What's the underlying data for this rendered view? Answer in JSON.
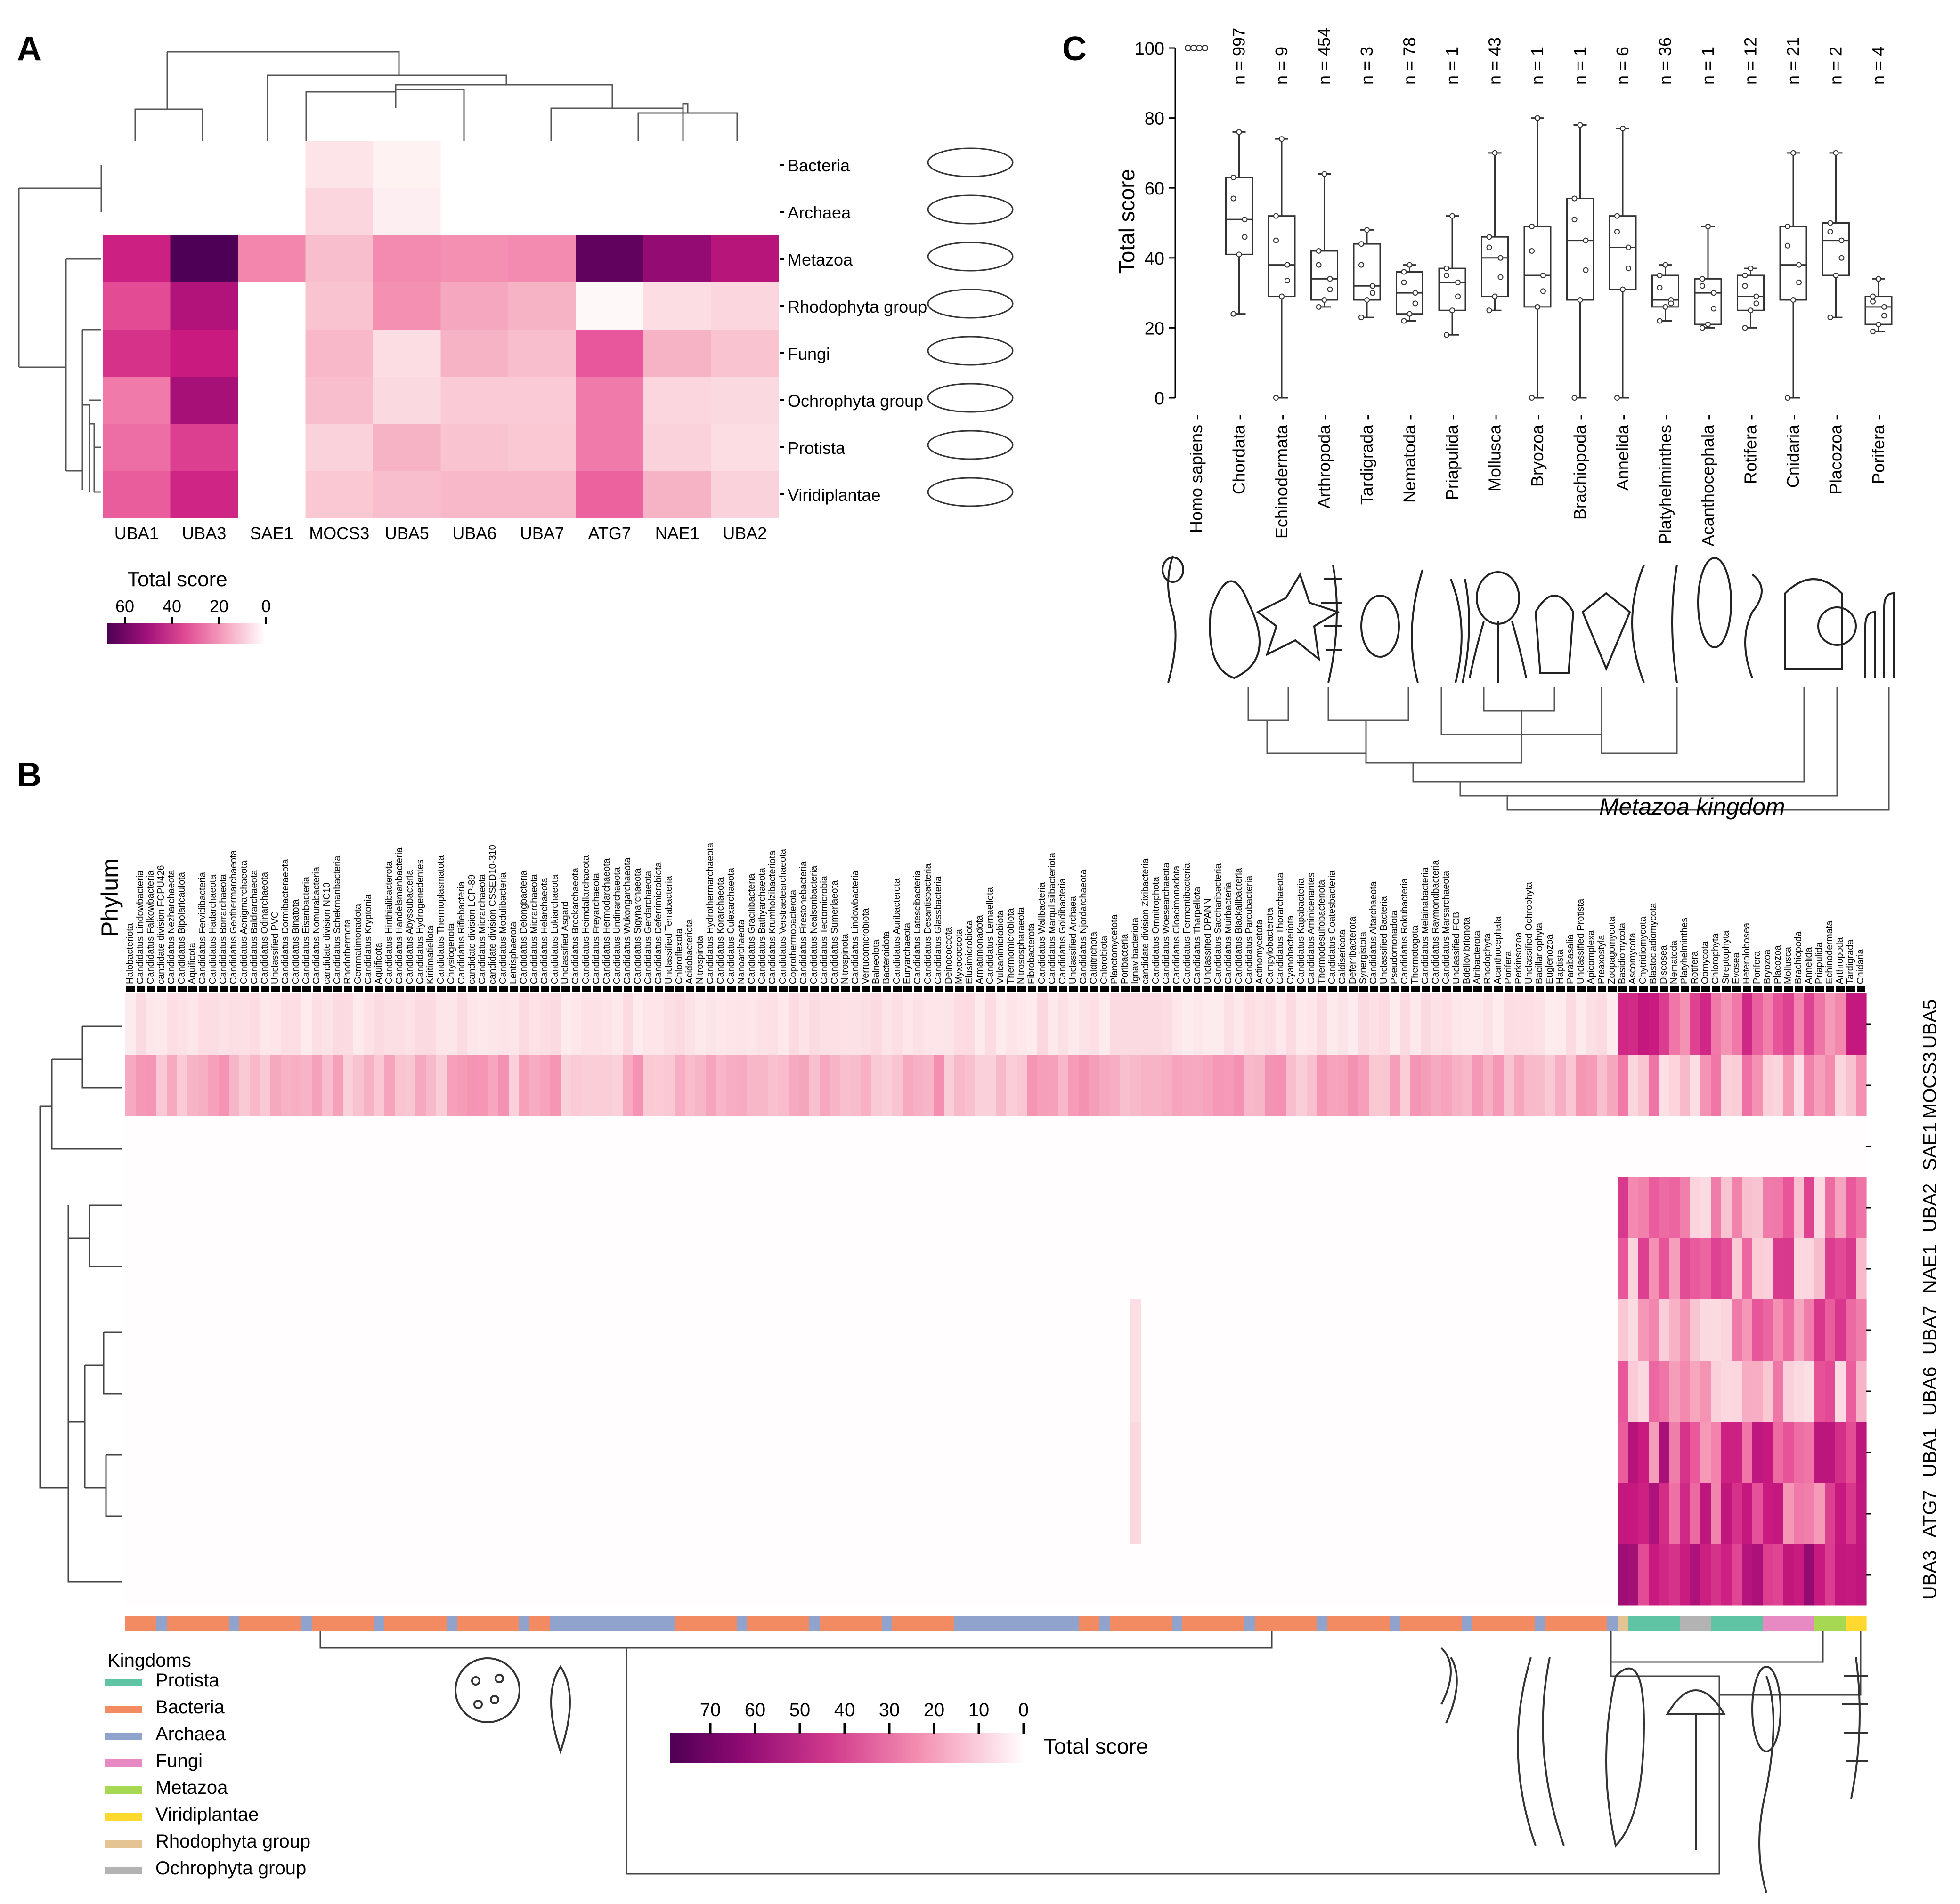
{
  "panels": {
    "a": "A",
    "b": "B",
    "c": "C"
  },
  "colors": {
    "scale": [
      "#ffffff",
      "#fde9ec",
      "#f9c6d2",
      "#f48fb1",
      "#e8559a",
      "#c8197f",
      "#8e0a72",
      "#4d0055"
    ],
    "dendro": "#555555",
    "box": "#333333"
  },
  "panel_a": {
    "rows": [
      "Bacteria",
      "Archaea",
      "Metazoa",
      "Rhodophyta group",
      "Fungi",
      "Ochrophyta group",
      "Protista",
      "Viridiplantae"
    ],
    "cols": [
      "UBA1",
      "UBA3",
      "SAE1",
      "MOCS3",
      "UBA5",
      "UBA6",
      "UBA7",
      "ATG7",
      "NAE1",
      "UBA2"
    ],
    "values": [
      [
        0,
        0,
        0,
        8,
        4,
        0,
        0,
        0,
        0,
        0
      ],
      [
        0,
        0,
        0,
        12,
        5,
        0,
        0,
        0,
        0,
        0
      ],
      [
        45,
        66,
        28,
        18,
        27,
        26,
        27,
        63,
        55,
        49
      ],
      [
        38,
        50,
        0,
        17,
        26,
        22,
        20,
        2,
        10,
        12
      ],
      [
        42,
        46,
        0,
        19,
        10,
        20,
        18,
        36,
        20,
        17
      ],
      [
        30,
        52,
        0,
        18,
        11,
        15,
        15,
        30,
        12,
        11
      ],
      [
        32,
        40,
        0,
        13,
        20,
        17,
        16,
        30,
        13,
        10
      ],
      [
        35,
        44,
        0,
        16,
        18,
        19,
        19,
        34,
        20,
        13
      ]
    ],
    "legend_title": "Total score",
    "legend_ticks": [
      "60",
      "40",
      "20",
      "0"
    ],
    "legend_range": [
      60,
      0
    ],
    "row_icons": [
      "bacterium-icon",
      "archaeon-icon",
      "centipede-icon",
      "red-alga-icon",
      "mushroom-icon",
      "kelp-icon",
      "protist-icon",
      "plant-icon"
    ]
  },
  "panel_b": {
    "phylum_label": "Phylum",
    "genes": [
      "UBA5",
      "MOCS3",
      "SAE1",
      "UBA2",
      "NAE1",
      "UBA7",
      "UBA6",
      "UBA1",
      "ATG7",
      "UBA3"
    ],
    "phyla": [
      "Halobacteriota",
      "Candidatus Lindowbacteria",
      "Candidatus Falkowbacteria",
      "candidate division FCPU426",
      "Candidatus Nezharchaeota",
      "Candidatus Bipolaricaulota",
      "Aquificota",
      "Candidatus Fervidibacteria",
      "Candidatus Hadarchaeota",
      "Candidatus Borrarchaeota",
      "Candidatus Geothermarchaeota",
      "Candidatus Aenigmarchaeota",
      "Candidatus Baldrarchaeota",
      "Candidatus Odinarchaeota",
      "Unclassified PVC",
      "Candidatus Dormibacteraeota",
      "Candidatus Binatota",
      "Candidatus Eisenbacteria",
      "Candidatus Nomurabacteria",
      "candidate division NC10",
      "Candidatus Schekmanbacteria",
      "Rhodothermota",
      "Gemmatimonadota",
      "Candidatus Kryptonia",
      "Aquificota",
      "Candidatus Hinthialibacterota",
      "Candidatus Handelsmanbacteria",
      "Candidatus Abyssubacteria",
      "Candidatus Hydrogenedentes",
      "Kiritimatiellota",
      "Candidatus Thermoplasmatota",
      "Chrysiogenota",
      "Candidatus Riflebacteria",
      "candidate division LCP-89",
      "Candidatus Micrarchaeota",
      "candidate division CSSED10-310",
      "Candidatus Modulibacteria",
      "Lentisphaerota",
      "Candidatus Delongbacteria",
      "Candidatus Micrarchaeota",
      "Candidatus Helarchaeota",
      "Candidatus Lokiarchaeota",
      "Unclassified Asgard",
      "Candidatus Brockarchaeota",
      "Candidatus Heimdallarchaeota",
      "Candidatus Freyarchaeota",
      "Candidatus Hermodarchaeota",
      "Candidatus Undinarchaeota",
      "Candidatus Wukongarchaeota",
      "Candidatus Sigynarchaeota",
      "Candidatus Gerdarchaeota",
      "Candidatus Deferrimicrobiota",
      "Unclassified Terrabacteria",
      "Chloroflexota",
      "Acidobacteriota",
      "Nitrospirota",
      "Candidatus Hydrothermarchaeota",
      "Candidatus Korarchaeota",
      "Candidatus Culexarchaeota",
      "Nanoarchaeota",
      "Candidatus Gracilibacteria",
      "Candidatus Bathyarchaeota",
      "Candidatus Krumholzibacteriota",
      "Candidatus Verstraetearchaeota",
      "Coprothermobacterota",
      "Candidatus Firestonebacteria",
      "Candidatus Nealsonbacteria",
      "Candidatus Tectomicrobia",
      "Candidatus Sumerlaeota",
      "Nitrospinota",
      "Candidatus Lindowbacteria",
      "Verrucomicrobiota",
      "Balneolota",
      "Bacteroidota",
      "Candidatus Auribacterota",
      "Euryarchaeota",
      "Candidatus Latescibacteria",
      "Candidatus Desantisbacteria",
      "Candidatus Glassbacteria",
      "Deinococcota",
      "Myxococcota",
      "Elusimicrobiota",
      "Armatimonadota",
      "Candidatus Lernaellota",
      "Vulcanimicrobiota",
      "Thermomicrobiota",
      "Nitrosospharaeota",
      "Fibrobacterota",
      "Candidatus Wallbacteria",
      "Candidatus Marqulisiibacteriota",
      "Candidatus Goldibacteria",
      "Unclassified Archaea",
      "Candidatus Njordarchaeota",
      "Calditrichota",
      "Chlorobiota",
      "Planctomycetota",
      "Poribacteria",
      "Ignavibacteriota",
      "candidate division Zixibacteria",
      "Candidatus Omnitrophota",
      "Candidatus Woesearchaeota",
      "Candidatus Cloacimonadota",
      "Candidatus Fermentibacteria",
      "Candidatus Tharpellota",
      "Unclassified DPANN",
      "Candidatus Saccharibacteria",
      "Candidatus Muirbacteria",
      "Candidatus Blackallbacteria",
      "Candidatus Parcubacteria",
      "Actinomycetota",
      "Campylobacterota",
      "Candidatus Thorarchaeota",
      "Cyanobacteriota",
      "Candidatus Kapabacteria",
      "Candidatus Aminicenantes",
      "Thermodesulfobacteriota",
      "Candidatus Coatesbacteria",
      "Caldisericota",
      "Deferribacterota",
      "Synergistota",
      "Candidatus Altarchaeota",
      "Unclassified Bacteria",
      "Pseudomonadota",
      "Candidatus Rokubacteria",
      "Thermotogota",
      "Candidatus Melainabacteria",
      "Candidatus Raymondbacteria",
      "Candidatus Marsarchaeota",
      "Unclassified FCB",
      "Bdellovibrionota",
      "Atribacterota",
      "Rhodophyta",
      "Acanthocephala",
      "Porifera",
      "Perkinsozoa",
      "Unclassified Ochrophyta",
      "Bacillariophyta",
      "Euglenozoa",
      "Haptista",
      "Parabasalia",
      "Unclassified Protista",
      "Apicomplexa",
      "Preaxostyla",
      "Zoopagomycota",
      "Basidiomycota",
      "Ascomycota",
      "Chytridiomycota",
      "Blastocladiomycota",
      "Discosea",
      "Nematoda",
      "Platyhelminthes",
      "Rotifera",
      "Oomycota",
      "Chlorophyta",
      "Streptophyta",
      "Evosea",
      "Heterolobosea",
      "Porifera",
      "Bryozoa",
      "Placozoa",
      "Mollusca",
      "Brachiopoda",
      "Annelida",
      "Priapulida",
      "Echinodermata",
      "Arthropoda",
      "Tardigrada",
      "Cnidaria"
    ],
    "kingdoms_legend": [
      {
        "name": "Protista",
        "color": "#5fc4a3"
      },
      {
        "name": "Bacteria",
        "color": "#f28b62"
      },
      {
        "name": "Archaea",
        "color": "#8fa3cc"
      },
      {
        "name": "Fungi",
        "color": "#e78ac3"
      },
      {
        "name": "Metazoa",
        "color": "#a6d854"
      },
      {
        "name": "Viridiplantae",
        "color": "#ffd92f"
      },
      {
        "name": "Rhodophyta group",
        "color": "#e5c494"
      },
      {
        "name": "Ochrophyta group",
        "color": "#b3b3b3"
      }
    ],
    "kingdoms_title": "Kingdoms",
    "legend_title": "Total score",
    "legend_ticks": [
      "70",
      "60",
      "50",
      "40",
      "30",
      "20",
      "10",
      "0"
    ],
    "legend_range": [
      70,
      0
    ]
  },
  "panel_c": {
    "ylabel": "Total score",
    "yticks": [
      "0",
      "20",
      "40",
      "60",
      "80",
      "100"
    ],
    "ylim": [
      0,
      100
    ],
    "xlabel": "Metazoa kingdom",
    "groups": [
      {
        "name": "Homo sapiens",
        "n": "",
        "q1": 100,
        "med": 100,
        "q3": 100,
        "lo": 100,
        "hi": 100
      },
      {
        "name": "Chordata",
        "n": "n = 997",
        "q1": 41,
        "med": 51,
        "q3": 63,
        "lo": 24,
        "hi": 76
      },
      {
        "name": "Echinodermata",
        "n": "n = 9",
        "q1": 29,
        "med": 38,
        "q3": 52,
        "lo": 0,
        "hi": 74
      },
      {
        "name": "Arthropoda",
        "n": "n = 454",
        "q1": 28,
        "med": 34,
        "q3": 42,
        "lo": 26,
        "hi": 64
      },
      {
        "name": "Tardigrada",
        "n": "n = 3",
        "q1": 28,
        "med": 32,
        "q3": 44,
        "lo": 23,
        "hi": 48
      },
      {
        "name": "Nematoda",
        "n": "n = 78",
        "q1": 24,
        "med": 30,
        "q3": 36,
        "lo": 22,
        "hi": 38
      },
      {
        "name": "Priapulida",
        "n": "n = 1",
        "q1": 25,
        "med": 33,
        "q3": 37,
        "lo": 18,
        "hi": 52
      },
      {
        "name": "Mollusca",
        "n": "n = 43",
        "q1": 29,
        "med": 40,
        "q3": 46,
        "lo": 25,
        "hi": 70
      },
      {
        "name": "Bryozoa",
        "n": "n = 1",
        "q1": 26,
        "med": 35,
        "q3": 49,
        "lo": 0,
        "hi": 80
      },
      {
        "name": "Brachiopoda",
        "n": "n = 1",
        "q1": 28,
        "med": 45,
        "q3": 57,
        "lo": 0,
        "hi": 78
      },
      {
        "name": "Annelida",
        "n": "n = 6",
        "q1": 31,
        "med": 43,
        "q3": 52,
        "lo": 0,
        "hi": 77
      },
      {
        "name": "Platyhelminthes",
        "n": "n = 36",
        "q1": 26,
        "med": 28,
        "q3": 35,
        "lo": 22,
        "hi": 38
      },
      {
        "name": "Acanthocephala",
        "n": "n = 1",
        "q1": 21,
        "med": 30,
        "q3": 34,
        "lo": 20,
        "hi": 49
      },
      {
        "name": "Rotifera",
        "n": "n = 12",
        "q1": 25,
        "med": 29,
        "q3": 35,
        "lo": 20,
        "hi": 37
      },
      {
        "name": "Cnidaria",
        "n": "n = 21",
        "q1": 28,
        "med": 38,
        "q3": 49,
        "lo": 0,
        "hi": 70
      },
      {
        "name": "Placozoa",
        "n": "n = 2",
        "q1": 35,
        "med": 45,
        "q3": 50,
        "lo": 23,
        "hi": 70
      },
      {
        "name": "Porifera",
        "n": "n = 4",
        "q1": 21,
        "med": 26,
        "q3": 29,
        "lo": 19,
        "hi": 34
      }
    ]
  },
  "chart_data": [
    {
      "type": "heatmap",
      "title": "A",
      "rows": [
        "Bacteria",
        "Archaea",
        "Metazoa",
        "Rhodophyta group",
        "Fungi",
        "Ochrophyta group",
        "Protista",
        "Viridiplantae"
      ],
      "columns": [
        "UBA1",
        "UBA3",
        "SAE1",
        "MOCS3",
        "UBA5",
        "UBA6",
        "UBA7",
        "ATG7",
        "NAE1",
        "UBA2"
      ],
      "colorbar": "Total score",
      "colorbar_range": [
        0,
        60
      ]
    },
    {
      "type": "heatmap",
      "title": "B",
      "rows": [
        "UBA5",
        "MOCS3",
        "SAE1",
        "UBA2",
        "NAE1",
        "UBA7",
        "UBA6",
        "UBA1",
        "ATG7",
        "UBA3"
      ],
      "columns_label": "Phylum",
      "colorbar": "Total score",
      "colorbar_range": [
        0,
        70
      ]
    },
    {
      "type": "box",
      "title": "C",
      "ylabel": "Total score",
      "ylim": [
        0,
        100
      ],
      "xlabel": "Metazoa kingdom",
      "categories": [
        "Homo sapiens",
        "Chordata",
        "Echinodermata",
        "Arthropoda",
        "Tardigrada",
        "Nematoda",
        "Priapulida",
        "Mollusca",
        "Bryozoa",
        "Brachiopoda",
        "Annelida",
        "Platyhelminthes",
        "Acanthocephala",
        "Rotifera",
        "Cnidaria",
        "Placozoa",
        "Porifera"
      ],
      "n_labels": [
        "",
        "n = 997",
        "n = 9",
        "n = 454",
        "n = 3",
        "n = 78",
        "n = 1",
        "n = 43",
        "n = 1",
        "n = 1",
        "n = 6",
        "n = 36",
        "n = 1",
        "n = 12",
        "n = 21",
        "n = 2",
        "n = 4"
      ],
      "medians": [
        100,
        51,
        38,
        34,
        32,
        30,
        33,
        40,
        35,
        45,
        43,
        28,
        30,
        29,
        38,
        45,
        26
      ]
    }
  ]
}
